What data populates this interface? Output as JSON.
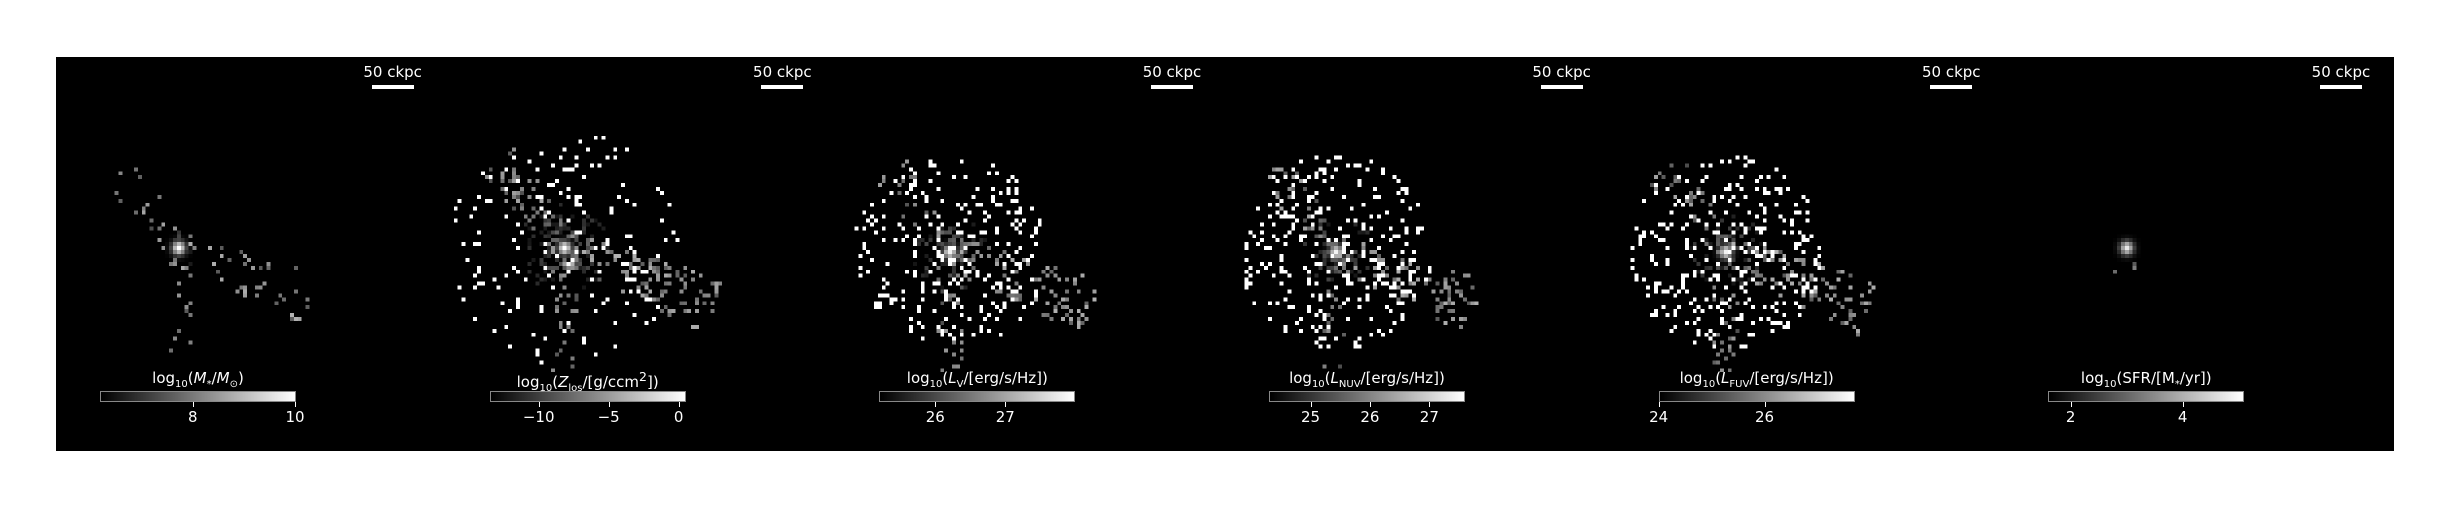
{
  "panels": [
    {
      "scale_label": "50 ckpc",
      "cbar_label_parts": [
        [
          "log",
          ""
        ],
        [
          "10",
          "sub"
        ],
        [
          "(",
          ""
        ],
        [
          "M",
          "i"
        ],
        [
          "*",
          "sub"
        ],
        [
          "/",
          ""
        ],
        [
          "M",
          "i"
        ],
        [
          "⊙",
          "sub"
        ],
        [
          ")",
          ""
        ]
      ],
      "cbar_range": [
        6.2,
        10
      ],
      "ticks": [
        {
          "value": 8,
          "label": "8"
        },
        {
          "value": 10,
          "label": "10"
        }
      ]
    },
    {
      "scale_label": "50 ckpc",
      "cbar_label_parts": [
        [
          "log",
          ""
        ],
        [
          "10",
          "sub"
        ],
        [
          "(",
          ""
        ],
        [
          "Z",
          "i"
        ],
        [
          "los",
          "sub"
        ],
        [
          "/[g/ccm",
          ""
        ],
        [
          "2",
          "sup"
        ],
        [
          "])",
          ""
        ]
      ],
      "cbar_range": [
        -13.5,
        0.5
      ],
      "ticks": [
        {
          "value": -10,
          "label": "−10"
        },
        {
          "value": -5,
          "label": "−5"
        },
        {
          "value": 0,
          "label": "0"
        }
      ]
    },
    {
      "scale_label": "50 ckpc",
      "cbar_label_parts": [
        [
          "log",
          ""
        ],
        [
          "10",
          "sub"
        ],
        [
          "(",
          ""
        ],
        [
          "L",
          "i"
        ],
        [
          "V",
          "sub"
        ],
        [
          "/[erg/s/Hz])",
          ""
        ]
      ],
      "cbar_range": [
        25.2,
        28
      ],
      "ticks": [
        {
          "value": 26,
          "label": "26"
        },
        {
          "value": 27,
          "label": "27"
        }
      ]
    },
    {
      "scale_label": "50 ckpc",
      "cbar_label_parts": [
        [
          "log",
          ""
        ],
        [
          "10",
          "sub"
        ],
        [
          "(",
          ""
        ],
        [
          "L",
          "i"
        ],
        [
          "NUV",
          "sub"
        ],
        [
          "/[erg/s/Hz])",
          ""
        ]
      ],
      "cbar_range": [
        24.3,
        27.6
      ],
      "ticks": [
        {
          "value": 25,
          "label": "25"
        },
        {
          "value": 26,
          "label": "26"
        },
        {
          "value": 27,
          "label": "27"
        }
      ]
    },
    {
      "scale_label": "50 ckpc",
      "cbar_label_parts": [
        [
          "log",
          ""
        ],
        [
          "10",
          "sub"
        ],
        [
          "(",
          ""
        ],
        [
          "L",
          "i"
        ],
        [
          "FUV",
          "sub"
        ],
        [
          "/[erg/s/Hz])",
          ""
        ]
      ],
      "cbar_range": [
        24,
        27.7
      ],
      "ticks": [
        {
          "value": 24,
          "label": "24"
        },
        {
          "value": 26,
          "label": "26"
        }
      ]
    },
    {
      "scale_label": "50 ckpc",
      "cbar_label_parts": [
        [
          "log",
          ""
        ],
        [
          "10",
          "sub"
        ],
        [
          "(SFR/[M",
          ""
        ],
        [
          "*",
          "sub"
        ],
        [
          "/yr])",
          ""
        ]
      ],
      "cbar_range": [
        1.6,
        5.1
      ],
      "ticks": [
        {
          "value": 2,
          "label": "2"
        },
        {
          "value": 4,
          "label": "4"
        }
      ]
    }
  ]
}
